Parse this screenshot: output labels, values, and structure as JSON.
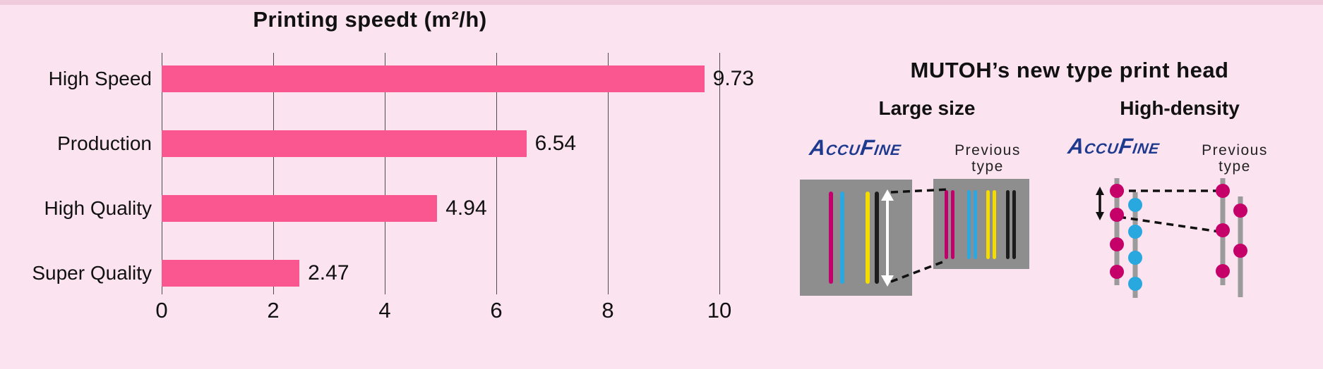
{
  "colors": {
    "background": "#fbe3ef",
    "top_strip": "#f0cbdc",
    "bar_pink": "#fa568f",
    "grid_line": "#4d4d4d",
    "text": "#111111",
    "logo_navy": "#1d3a8f",
    "head_gray": "#8e8e8e",
    "nozzle_magenta": "#c2006c",
    "nozzle_cyan": "#2ba8e0",
    "nozzle_yellow": "#f5dc00",
    "nozzle_black": "#1c1c1c",
    "arrow_white": "#ffffff",
    "rail_gray": "#9b9b9b",
    "dot_magenta": "#c50068",
    "dot_cyan": "#29a8df"
  },
  "chart_data": {
    "type": "bar",
    "orientation": "horizontal",
    "title": "Printing speedt (m²/h)",
    "categories": [
      "High Speed",
      "Production",
      "High Quality",
      "Super Quality"
    ],
    "values": [
      9.73,
      6.54,
      4.94,
      2.47
    ],
    "value_labels": [
      "9.73",
      "6.54",
      "4.94",
      "2.47"
    ],
    "x_ticks": [
      0,
      2,
      4,
      6,
      8,
      10
    ],
    "xlim": [
      0,
      10
    ],
    "grid": true,
    "legend": false,
    "bar_color": "#fa568f"
  },
  "right_panel": {
    "heading": "MUTOH’s new type print head",
    "logo": {
      "p1": "A",
      "p2": "CCU",
      "p3": "F",
      "p4": "INE"
    },
    "sections": [
      {
        "label": "Large size",
        "prev_line1": "Previous",
        "prev_line2": "type"
      },
      {
        "label": "High-density",
        "prev_line1": "Previous",
        "prev_line2": "type"
      }
    ]
  }
}
